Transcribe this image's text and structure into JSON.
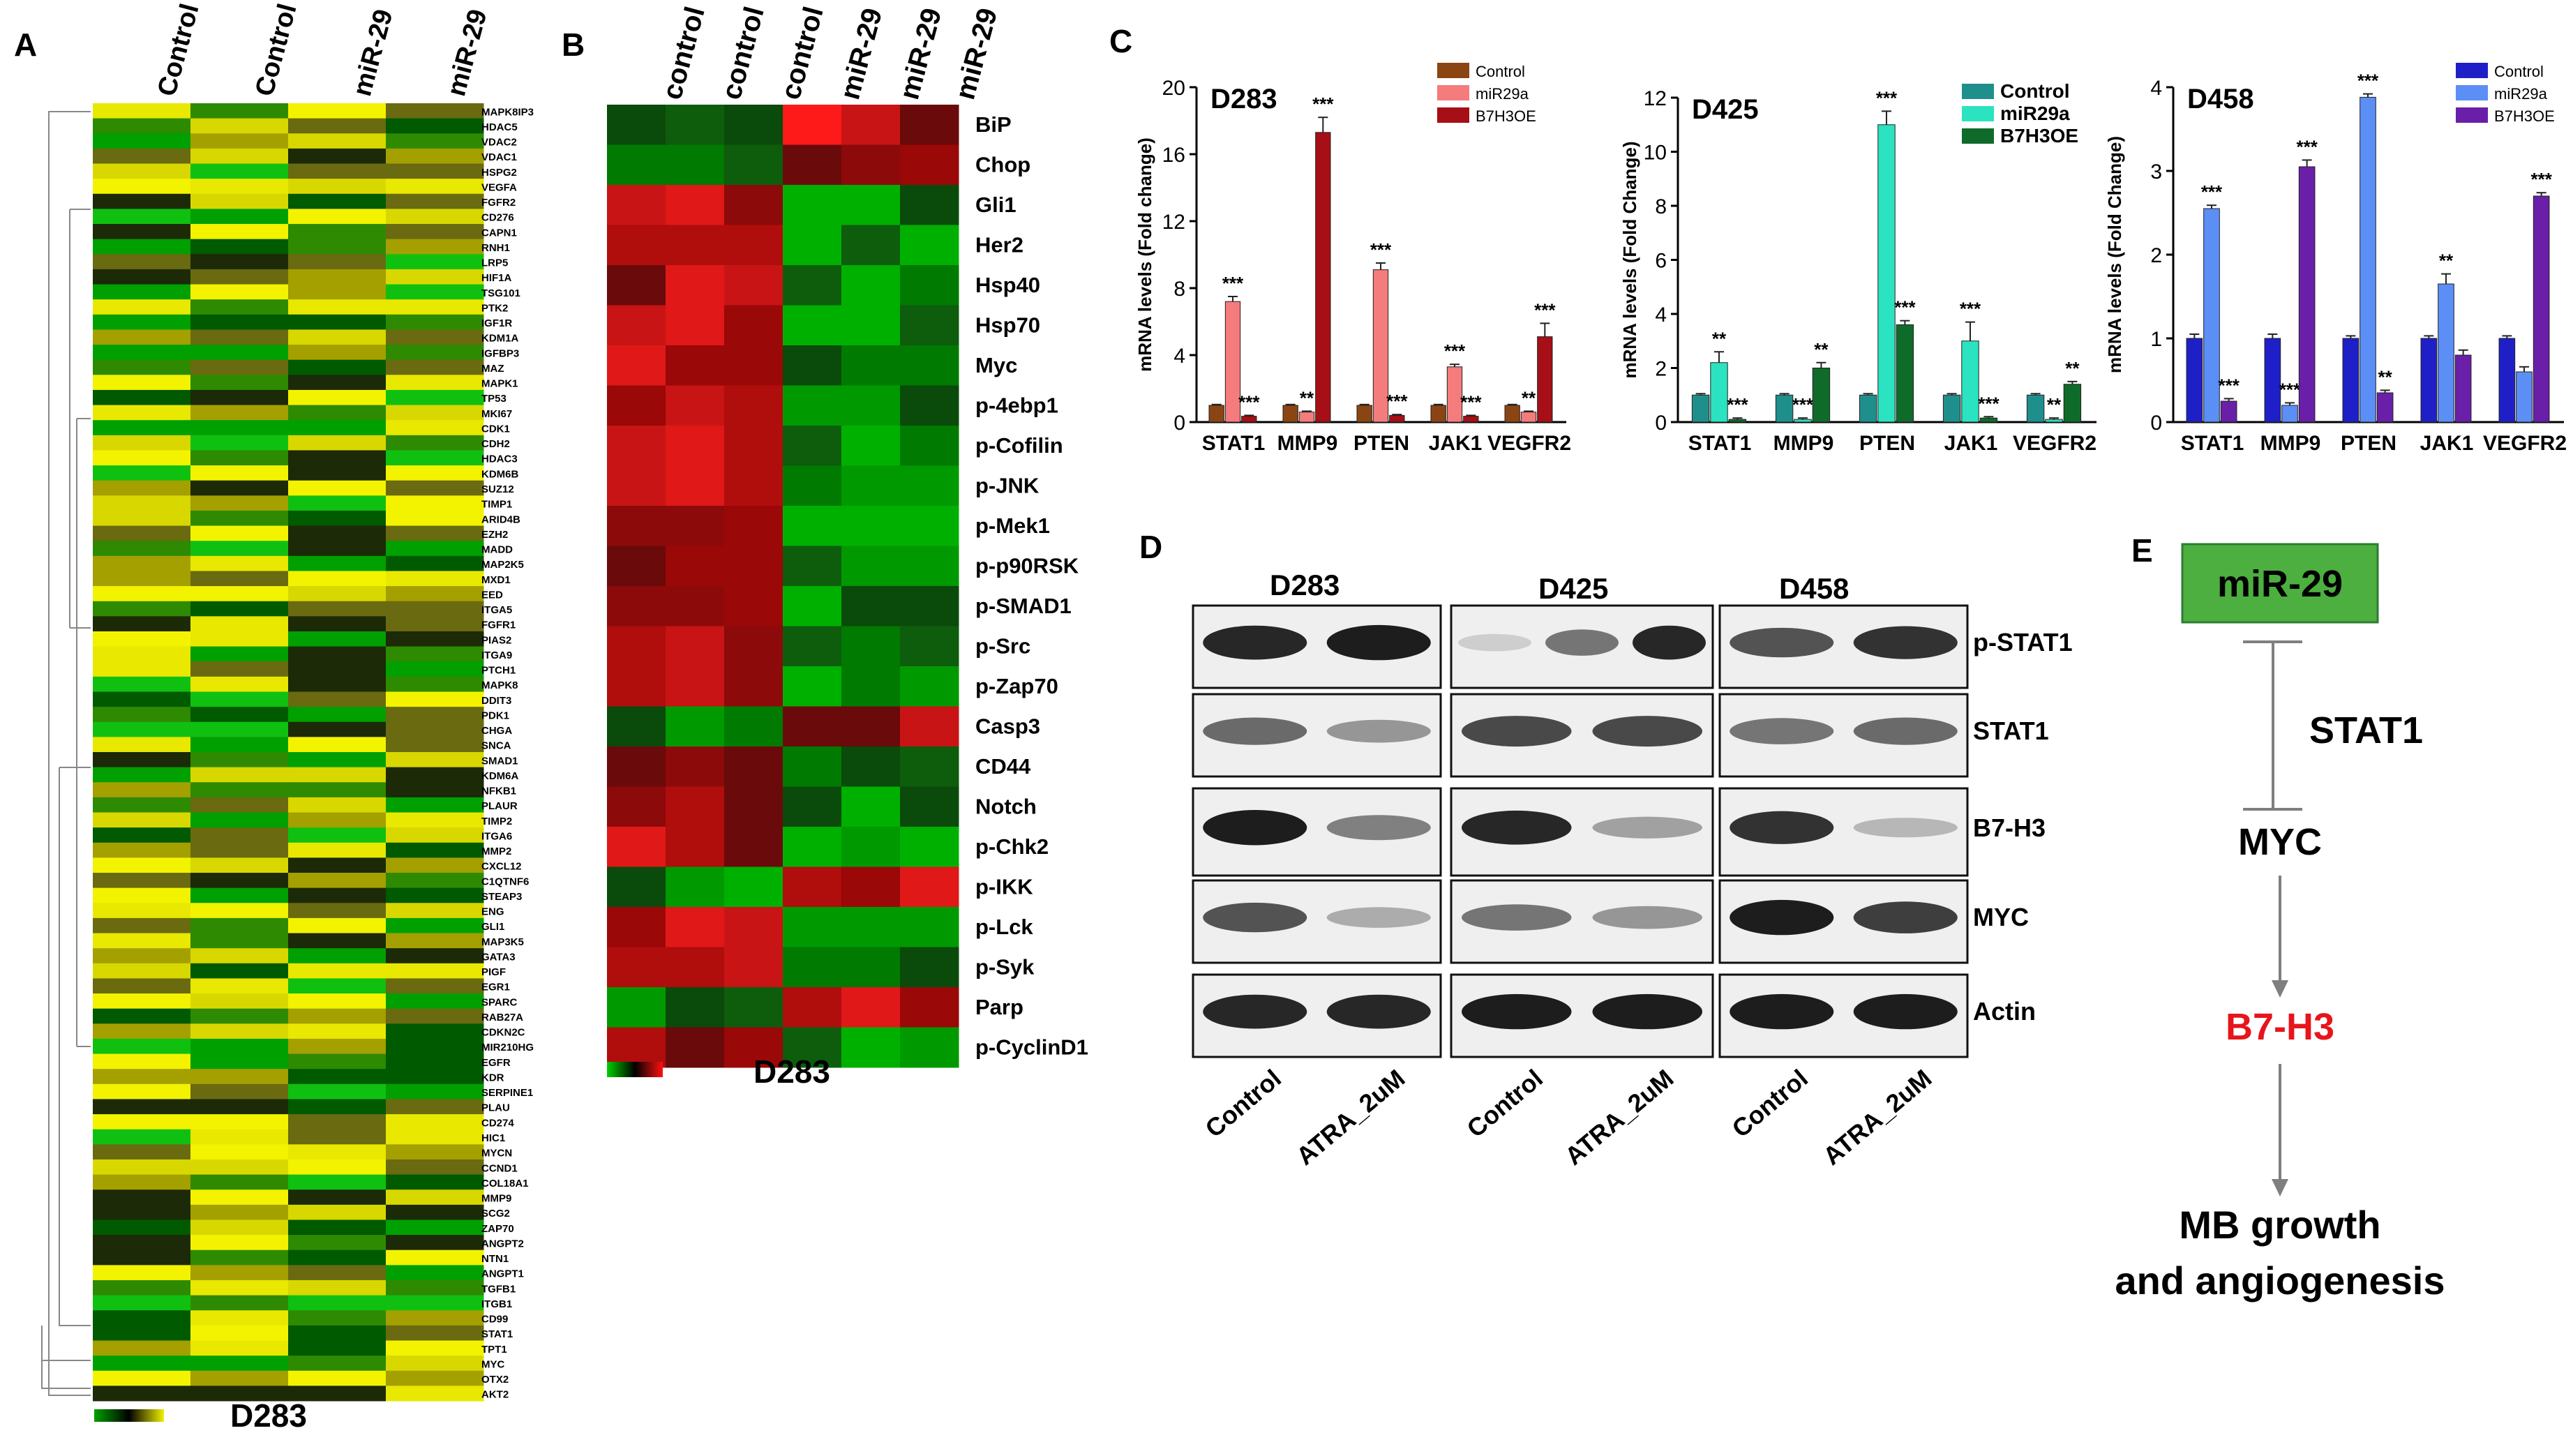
{
  "panels": {
    "A": {
      "letter": "A",
      "columns": [
        "Control",
        "Control",
        "miR-29",
        "miR-29"
      ],
      "cell_line": "D283",
      "colorbar": [
        "green",
        "black",
        "yellow"
      ],
      "genes": [
        "MAPK8IP3",
        "HDAC5",
        "VDAC2",
        "VDAC1",
        "HSPG2",
        "VEGFA",
        "FGFR2",
        "CD276",
        "CAPN1",
        "RNH1",
        "LRP5",
        "HIF1A",
        "TSG101",
        "PTK2",
        "IGF1R",
        "KDM1A",
        "IGFBP3",
        "MAZ",
        "MAPK1",
        "TP53",
        "MKI67",
        "CDK1",
        "CDH2",
        "HDAC3",
        "KDM6B",
        "SUZ12",
        "TIMP1",
        "ARID4B",
        "EZH2",
        "MADD",
        "MAP2K5",
        "MXD1",
        "EED",
        "ITGA5",
        "FGFR1",
        "PIAS2",
        "ITGA9",
        "PTCH1",
        "MAPK8",
        "DDIT3",
        "PDK1",
        "CHGA",
        "SNCA",
        "SMAD1",
        "KDM6A",
        "NFKB1",
        "PLAUR",
        "TIMP2",
        "ITGA6",
        "MMP2",
        "CXCL12",
        "C1QTNF6",
        "STEAP3",
        "ENG",
        "GLI1",
        "MAP3K5",
        "GATA3",
        "PIGF",
        "EGR1",
        "SPARC",
        "RAB27A",
        "CDKN2C",
        "MIR210HG",
        "EGFR",
        "KDR",
        "SERPINE1",
        "PLAU",
        "CD274",
        "HIC1",
        "MYCN",
        "CCND1",
        "COL18A1",
        "MMP9",
        "SCG2",
        "ZAP70",
        "ANGPT2",
        "NTN1",
        "ANGPT1",
        "TGFB1",
        "ITGB1",
        "CD99",
        "STAT1",
        "TPT1",
        "MYC",
        "OTX2",
        "AKT2"
      ]
    },
    "B": {
      "letter": "B",
      "columns": [
        "control",
        "control",
        "control",
        "miR-29",
        "miR-29",
        "miR-29"
      ],
      "cell_line": "D283",
      "rows": [
        "BiP",
        "Chop",
        "Gli1",
        "Her2",
        "Hsp40",
        "Hsp70",
        "Myc",
        "p-4ebp1",
        "p-Cofilin",
        "p-JNK",
        "p-Mek1",
        "p-p90RSK",
        "p-SMAD1",
        "p-Src",
        "p-Zap70",
        "Casp3",
        "CD44",
        "Notch",
        "p-Chk2",
        "p-IKK",
        "p-Lck",
        "p-Syk",
        "Parp",
        "p-CyclinD1"
      ],
      "colorbar": [
        "green",
        "black",
        "red"
      ]
    },
    "C": {
      "letter": "C",
      "annotations": [
        "***",
        "**"
      ]
    },
    "D": {
      "letter": "D",
      "cell_lines": [
        "D283",
        "D425",
        "D458"
      ],
      "proteins": [
        "p-STAT1",
        "STAT1",
        "B7-H3",
        "MYC",
        "Actin"
      ],
      "lanes": [
        "Control",
        "ATRA_2uM"
      ]
    },
    "E": {
      "letter": "E",
      "nodes": [
        "miR-29",
        "MYC",
        "B7-H3"
      ],
      "edge_label": "STAT1",
      "outcome_line1": "MB growth",
      "outcome_line2": "and angiogenesis",
      "colors": {
        "mir_box": "#4caf3f",
        "b7h3_text": "#e8141b",
        "arrow": "#7f7f7f"
      }
    }
  },
  "chart_data": [
    {
      "type": "bar",
      "title": "D283",
      "ylabel": "mRNA levels (Fold change)",
      "ylim": [
        0,
        20
      ],
      "yticks": [
        0,
        4,
        8,
        12,
        16,
        20
      ],
      "categories": [
        "STAT1",
        "MMP9",
        "PTEN",
        "JAK1",
        "VEGFR2"
      ],
      "series": [
        {
          "name": "Control",
          "color": "#8b4513",
          "values": [
            1.0,
            1.0,
            1.0,
            1.0,
            1.0
          ],
          "errors": [
            0.05,
            0.05,
            0.05,
            0.05,
            0.05
          ],
          "stars": [
            "",
            "",
            "",
            "",
            ""
          ]
        },
        {
          "name": "miR29a",
          "color": "#f47c7c",
          "values": [
            7.2,
            0.6,
            9.1,
            3.3,
            0.6
          ],
          "errors": [
            0.3,
            0.05,
            0.4,
            0.15,
            0.05
          ],
          "stars": [
            "***",
            "**",
            "***",
            "***",
            "**"
          ]
        },
        {
          "name": "B7H3OE",
          "color": "#a50f15",
          "values": [
            0.35,
            17.3,
            0.4,
            0.35,
            5.1
          ],
          "errors": [
            0.05,
            0.9,
            0.05,
            0.05,
            0.8
          ],
          "stars": [
            "***",
            "***",
            "***",
            "***",
            "***"
          ]
        }
      ]
    },
    {
      "type": "bar",
      "title": "D425",
      "ylabel": "mRNA levels (Fold Change)",
      "ylim": [
        0,
        12
      ],
      "yticks": [
        0,
        2,
        4,
        6,
        8,
        10,
        12
      ],
      "categories": [
        "STAT1",
        "MMP9",
        "PTEN",
        "JAK1",
        "VEGFR2"
      ],
      "series": [
        {
          "name": "Control",
          "color": "#1f8f8c",
          "values": [
            1.0,
            1.0,
            1.0,
            1.0,
            1.0
          ],
          "errors": [
            0.05,
            0.05,
            0.05,
            0.05,
            0.05
          ],
          "stars": [
            "",
            "",
            "",
            "",
            ""
          ]
        },
        {
          "name": "miR29a",
          "color": "#2be3c0",
          "values": [
            2.2,
            0.1,
            11.0,
            3.0,
            0.1
          ],
          "errors": [
            0.4,
            0.05,
            0.5,
            0.7,
            0.05
          ],
          "stars": [
            "**",
            "***",
            "***",
            "***",
            "**"
          ]
        },
        {
          "name": "B7H3OE",
          "color": "#0f6b2a",
          "values": [
            0.1,
            2.0,
            3.6,
            0.15,
            1.4
          ],
          "errors": [
            0.05,
            0.2,
            0.15,
            0.05,
            0.1
          ],
          "stars": [
            "***",
            "**",
            "***",
            "***",
            "**"
          ]
        }
      ]
    },
    {
      "type": "bar",
      "title": "D458",
      "ylabel": "mRNA levels (Fold Change)",
      "ylim": [
        0,
        4
      ],
      "yticks": [
        0,
        1,
        2,
        3,
        4
      ],
      "categories": [
        "STAT1",
        "MMP9",
        "PTEN",
        "JAK1",
        "VEGFR2"
      ],
      "series": [
        {
          "name": "Control",
          "color": "#1f1fc8",
          "values": [
            1.0,
            1.0,
            1.0,
            1.0,
            1.0
          ],
          "errors": [
            0.05,
            0.05,
            0.03,
            0.03,
            0.03
          ],
          "stars": [
            "",
            "",
            "",
            "",
            ""
          ]
        },
        {
          "name": "miR29a",
          "color": "#5b8ff5",
          "values": [
            2.55,
            0.2,
            3.88,
            1.65,
            0.6
          ],
          "errors": [
            0.04,
            0.03,
            0.04,
            0.12,
            0.06
          ],
          "stars": [
            "***",
            "***",
            "***",
            "**",
            ""
          ]
        },
        {
          "name": "B7H3OE",
          "color": "#6a1fa8",
          "values": [
            0.25,
            3.05,
            0.35,
            0.8,
            2.7
          ],
          "errors": [
            0.03,
            0.08,
            0.03,
            0.06,
            0.04
          ],
          "stars": [
            "***",
            "***",
            "**",
            "",
            "***"
          ]
        }
      ]
    }
  ]
}
